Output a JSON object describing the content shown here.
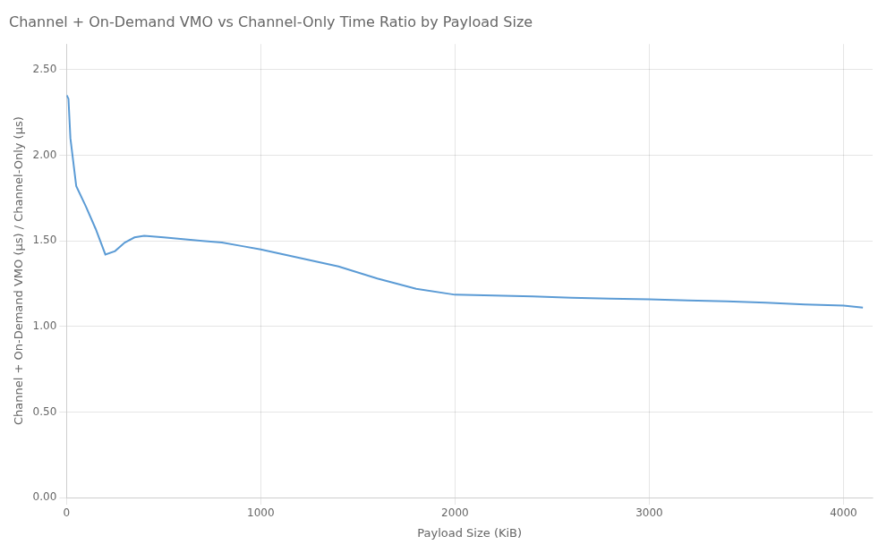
{
  "chart_data": {
    "type": "line",
    "title": "Channel + On-Demand VMO vs Channel-Only Time Ratio by Payload Size",
    "xlabel": "Payload Size (KiB)",
    "ylabel": "Channel + On-Demand VMO (µs) / Channel-Only (µs)",
    "color": "#5b9bd5",
    "x": [
      1,
      10,
      20,
      50,
      100,
      150,
      200,
      250,
      300,
      350,
      400,
      500,
      600,
      700,
      800,
      900,
      1000,
      1200,
      1400,
      1600,
      1800,
      2000,
      2200,
      2400,
      2600,
      2800,
      3000,
      3200,
      3400,
      3600,
      3800,
      4000,
      4100
    ],
    "values": [
      2.35,
      2.33,
      2.1,
      1.82,
      1.7,
      1.57,
      1.42,
      1.44,
      1.49,
      1.52,
      1.53,
      1.52,
      1.51,
      1.5,
      1.49,
      1.47,
      1.45,
      1.4,
      1.35,
      1.28,
      1.22,
      1.185,
      1.18,
      1.175,
      1.168,
      1.162,
      1.158,
      1.152,
      1.147,
      1.138,
      1.128,
      1.122,
      1.11
    ],
    "xlim": [
      0,
      4150
    ],
    "ylim": [
      0.0,
      2.65
    ],
    "xticks": [
      0,
      1000,
      2000,
      3000,
      4000
    ],
    "yticks": [
      {
        "value": 0.0,
        "label": "0.00"
      },
      {
        "value": 0.5,
        "label": "0.50"
      },
      {
        "value": 1.0,
        "label": "1.00"
      },
      {
        "value": 1.5,
        "label": "1.50"
      },
      {
        "value": 2.0,
        "label": "2.00"
      },
      {
        "value": 2.5,
        "label": "2.50"
      }
    ],
    "grid": true
  }
}
